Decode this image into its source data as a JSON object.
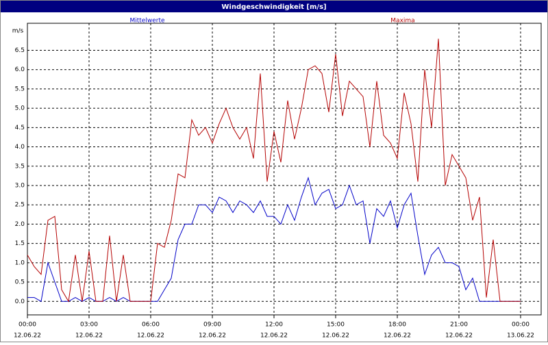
{
  "chart_data": {
    "type": "line",
    "title": "Windgeschwindigkeit [m/s]",
    "y_unit": "m/s",
    "x": [
      0,
      20,
      40,
      60,
      80,
      100,
      120,
      140,
      160,
      180,
      200,
      220,
      240,
      260,
      280,
      300,
      320,
      340,
      360,
      380,
      400,
      420,
      440,
      460,
      480,
      500,
      520,
      540,
      560,
      580,
      600,
      620,
      640,
      660,
      680,
      700,
      720,
      740,
      760,
      780,
      800,
      820,
      840,
      860,
      880,
      900,
      920,
      940,
      960,
      980,
      1000,
      1020,
      1040,
      1060,
      1080,
      1100,
      1120,
      1140,
      1160,
      1180,
      1200,
      1220,
      1240,
      1260,
      1280,
      1300,
      1320,
      1340,
      1360,
      1380,
      1400,
      1420,
      1440
    ],
    "series": [
      {
        "name": "Mittelwerte",
        "color": "#0000c8",
        "values": [
          0.1,
          0.1,
          0.0,
          1.0,
          0.5,
          0.0,
          0.0,
          0.1,
          0.0,
          0.1,
          0.0,
          0.0,
          0.1,
          0.0,
          0.1,
          0.0,
          0.0,
          0.0,
          0.0,
          0.0,
          0.3,
          0.6,
          1.6,
          2.0,
          2.0,
          2.5,
          2.5,
          2.3,
          2.7,
          2.6,
          2.3,
          2.6,
          2.5,
          2.3,
          2.6,
          2.2,
          2.2,
          2.0,
          2.5,
          2.1,
          2.7,
          3.2,
          2.5,
          2.8,
          2.9,
          2.4,
          2.5,
          3.0,
          2.5,
          2.6,
          1.5,
          2.4,
          2.2,
          2.6,
          1.9,
          2.5,
          2.8,
          1.7,
          0.7,
          1.2,
          1.4,
          1.0,
          1.0,
          0.9,
          0.3,
          0.6,
          0.0,
          0.0,
          0.0,
          0.0,
          0.0,
          0.0,
          0.0
        ]
      },
      {
        "name": "Maxima",
        "color": "#b40000",
        "values": [
          1.2,
          0.9,
          0.7,
          2.1,
          2.2,
          0.3,
          0.0,
          1.2,
          0.0,
          1.3,
          0.0,
          0.0,
          1.7,
          0.0,
          1.2,
          0.0,
          0.0,
          0.0,
          0.0,
          1.5,
          1.4,
          2.1,
          3.3,
          3.2,
          4.7,
          4.3,
          4.5,
          4.1,
          4.6,
          5.0,
          4.5,
          4.2,
          4.5,
          3.7,
          5.9,
          3.1,
          4.4,
          3.6,
          5.2,
          4.2,
          5.0,
          6.0,
          6.1,
          5.9,
          4.9,
          6.4,
          4.8,
          5.7,
          5.5,
          5.3,
          4.0,
          5.7,
          4.3,
          4.1,
          3.7,
          5.4,
          4.6,
          3.1,
          6.0,
          4.5,
          6.8,
          3.0,
          3.8,
          3.5,
          3.2,
          2.1,
          2.7,
          0.1,
          1.6,
          0.0,
          0.0,
          0.0,
          0.0
        ]
      }
    ],
    "xlim": [
      0,
      1500
    ],
    "ylim": [
      -0.35,
      7.2
    ],
    "xticks": [
      {
        "value": 0,
        "label": "00:00"
      },
      {
        "value": 180,
        "label": "03:00"
      },
      {
        "value": 360,
        "label": "06:00"
      },
      {
        "value": 540,
        "label": "09:00"
      },
      {
        "value": 720,
        "label": "12:00"
      },
      {
        "value": 900,
        "label": "15:00"
      },
      {
        "value": 1080,
        "label": "18:00"
      },
      {
        "value": 1260,
        "label": "21:00"
      },
      {
        "value": 1440,
        "label": "00:00"
      }
    ],
    "xtick_dates": [
      "12.06.22",
      "12.06.22",
      "12.06.22",
      "12.06.22",
      "12.06.22",
      "12.06.22",
      "12.06.22",
      "12.06.22",
      "13.06.22"
    ],
    "yticks": [
      {
        "value": 0,
        "label": "0.0"
      },
      {
        "value": 0.5,
        "label": "0.5"
      },
      {
        "value": 1,
        "label": "1.0"
      },
      {
        "value": 1.5,
        "label": "1.5"
      },
      {
        "value": 2,
        "label": "2.0"
      },
      {
        "value": 2.5,
        "label": "2.5"
      },
      {
        "value": 3,
        "label": "3.0"
      },
      {
        "value": 3.5,
        "label": "3.5"
      },
      {
        "value": 4,
        "label": "4.0"
      },
      {
        "value": 4.5,
        "label": "4.5"
      },
      {
        "value": 5,
        "label": "5.0"
      },
      {
        "value": 5.5,
        "label": "5.5"
      },
      {
        "value": 6,
        "label": "6.0"
      },
      {
        "value": 6.5,
        "label": "6.5"
      }
    ],
    "grid": true
  }
}
